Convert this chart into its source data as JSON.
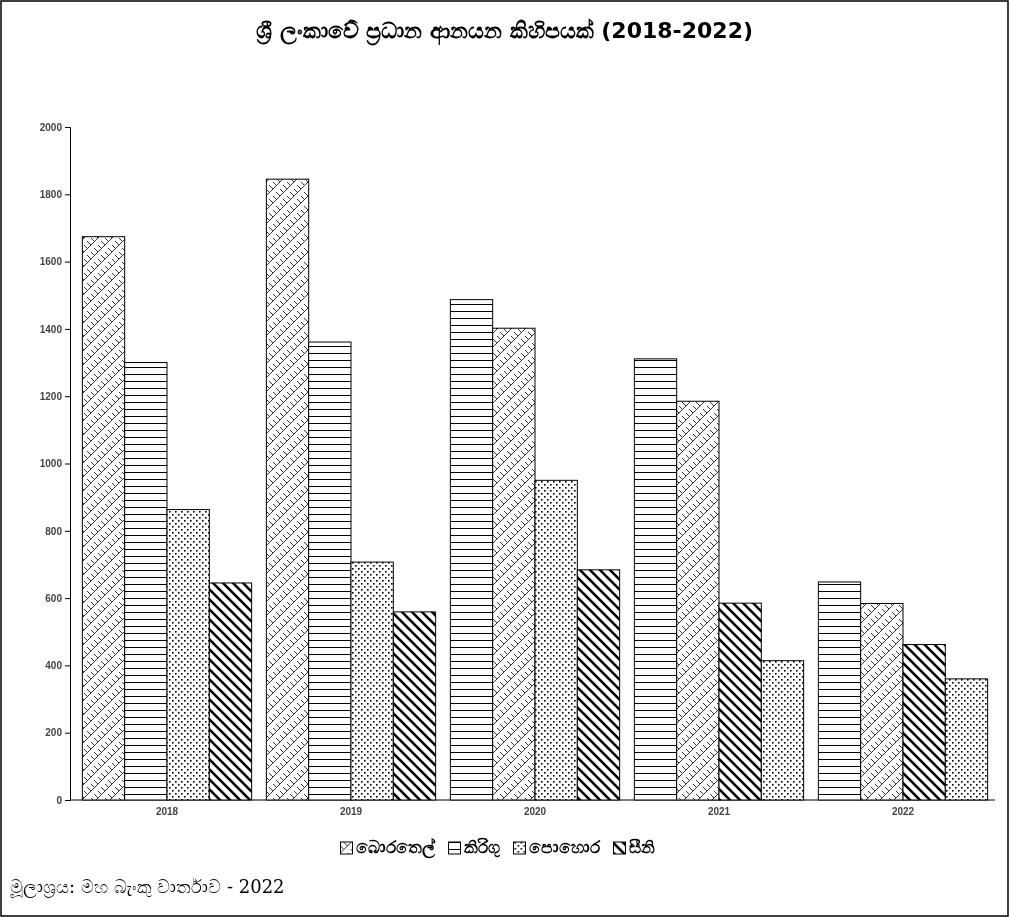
{
  "chart_data": {
    "type": "bar",
    "title": "ශ්‍රී ලංකාවේ ප්‍රධාන ආනයන කිහිපයක් (2018-2022)",
    "categories": [
      "2018",
      "2019",
      "2020",
      "2021",
      "2022"
    ],
    "series": [
      {
        "name": "බොරතෙල්",
        "color": "#000000",
        "values": [
          1674,
          1845,
          1402,
          1185,
          584
        ]
      },
      {
        "name": "කිරිගු",
        "color": "#000000",
        "values": [
          1300,
          1361,
          1487,
          1311,
          648
        ]
      },
      {
        "name": "පොහොර",
        "color": "#000000",
        "values": [
          863,
          707,
          950,
          414,
          360
        ]
      },
      {
        "name": "සීනි",
        "color": "#000000",
        "values": [
          645,
          559,
          684,
          585,
          462
        ]
      }
    ],
    "ylim": [
      0,
      2000
    ],
    "yticks": [
      0,
      200,
      400,
      600,
      800,
      1000,
      1200,
      1400,
      1600,
      1800,
      2000
    ],
    "legend": "bottom",
    "annotations": [
      "මූලාශ්‍රය: මහ බැංකු වාර්තාව - 2022"
    ]
  }
}
